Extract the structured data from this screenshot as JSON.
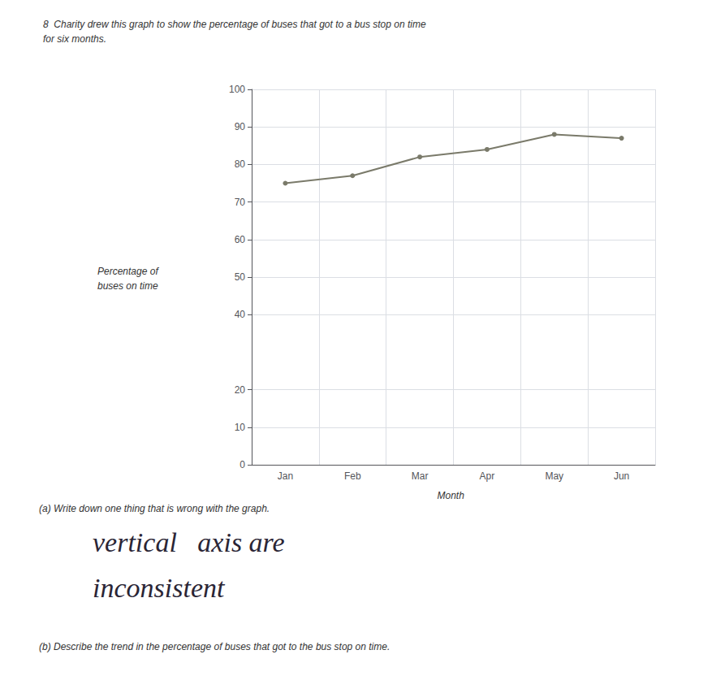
{
  "chart_data": {
    "type": "line",
    "title": [
      "8  Charity drew this graph to show the percentage of buses that got to a bus stop on time",
      "for six months."
    ],
    "ylabel": [
      "Percentage of",
      "buses on time"
    ],
    "xlabel": "Month",
    "categories": [
      "Jan",
      "Feb",
      "Mar",
      "Apr",
      "May",
      "Jun"
    ],
    "values": [
      75,
      77,
      82,
      84,
      88,
      87
    ],
    "color": "#7a7a6a",
    "marker": "circle",
    "ylim": [
      0,
      100
    ],
    "yticks": [
      0,
      10,
      20,
      40,
      50,
      60,
      70,
      80,
      90,
      100
    ],
    "grid": true,
    "annotations": [
      "(a) Write down one thing that is wrong with the graph.",
      "vertical   axis are",
      "inconsistent",
      "(b) Describe the trend in the percentage of buses that got to the bus stop on time."
    ]
  }
}
